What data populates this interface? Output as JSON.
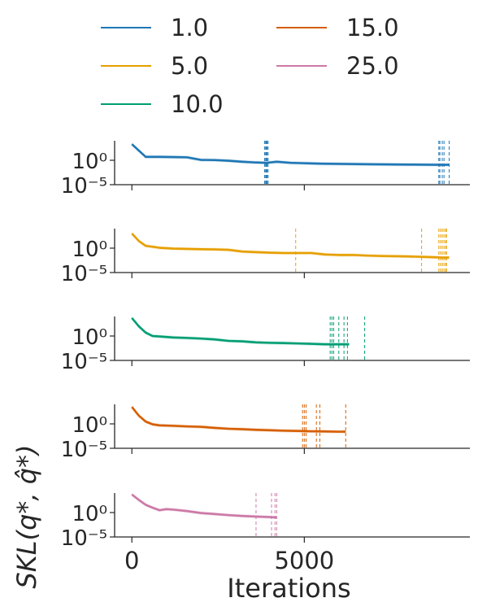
{
  "chart_data": {
    "type": "line",
    "xlabel": "Iterations",
    "ylabel": "SKL(q*, q̂*)",
    "xlim": [
      -500,
      9800
    ],
    "x_ticks": [
      0,
      5000
    ],
    "x_tick_labels": [
      "0",
      "5000"
    ],
    "yscale": "log",
    "ylim": [
      1e-05,
      10000
    ],
    "y_tick_labels": [
      "10⁰",
      "10⁻⁵"
    ],
    "y_tick_values": [
      1,
      1e-05
    ],
    "grid": false,
    "legend_placement": "top-center",
    "series": [
      {
        "name": "1.0",
        "color": "#1f77b4",
        "x": [
          0,
          400,
          800,
          1200,
          1600,
          2000,
          2400,
          2800,
          3200,
          3600,
          3900,
          4200,
          4600,
          5000,
          5500,
          6000,
          7000,
          8000,
          8900,
          9200
        ],
        "y": [
          2000,
          5,
          5,
          4.5,
          4,
          1.2,
          1.1,
          0.8,
          0.5,
          0.35,
          0.3,
          0.5,
          0.3,
          0.25,
          0.2,
          0.18,
          0.15,
          0.13,
          0.12,
          0.12
        ],
        "end_iterations": [
          3850,
          3880,
          3900,
          3920,
          3950,
          8900,
          8930,
          9000,
          9050,
          9200
        ]
      },
      {
        "name": "5.0",
        "color": "#e69f00",
        "x": [
          0,
          200,
          400,
          800,
          1200,
          1600,
          2000,
          2400,
          2800,
          3200,
          3600,
          4000,
          4400,
          4800,
          5200,
          5600,
          6000,
          6400,
          6800,
          7200,
          8000,
          8600,
          9000,
          9200
        ],
        "y": [
          1000,
          30,
          3,
          1.2,
          0.8,
          0.7,
          0.6,
          0.55,
          0.45,
          0.2,
          0.15,
          0.12,
          0.1,
          0.1,
          0.1,
          0.05,
          0.04,
          0.04,
          0.03,
          0.025,
          0.02,
          0.015,
          0.012,
          0.012
        ],
        "end_iterations": [
          4750,
          8400,
          8900,
          8950,
          9000,
          9050,
          9100,
          9120
        ]
      },
      {
        "name": "10.0",
        "color": "#009e73",
        "x": [
          0,
          200,
          400,
          600,
          800,
          1200,
          1600,
          2000,
          2400,
          2800,
          3200,
          3600,
          4000,
          4400,
          4800,
          5200,
          5600,
          6000,
          6300
        ],
        "y": [
          5000,
          100,
          5,
          1,
          0.8,
          0.5,
          0.4,
          0.3,
          0.2,
          0.1,
          0.08,
          0.05,
          0.04,
          0.035,
          0.03,
          0.025,
          0.02,
          0.02,
          0.02
        ],
        "end_iterations": [
          5750,
          5800,
          5850,
          6000,
          6150,
          6250,
          6750
        ]
      },
      {
        "name": "15.0",
        "color": "#d55e00",
        "x": [
          0,
          200,
          400,
          600,
          800,
          1200,
          1600,
          2000,
          2400,
          2800,
          3200,
          3600,
          4000,
          4400,
          4800,
          5200,
          5600,
          6000,
          6200
        ],
        "y": [
          3000,
          50,
          3,
          0.8,
          0.5,
          0.4,
          0.3,
          0.25,
          0.15,
          0.1,
          0.08,
          0.06,
          0.05,
          0.04,
          0.035,
          0.03,
          0.028,
          0.025,
          0.025
        ],
        "end_iterations": [
          4950,
          5000,
          5050,
          5350,
          5450,
          6200
        ]
      },
      {
        "name": "25.0",
        "color": "#cc79a7",
        "x": [
          0,
          200,
          400,
          600,
          800,
          1000,
          1200,
          1600,
          2000,
          2400,
          2800,
          3200,
          3600,
          4000,
          4200
        ],
        "y": [
          5000,
          400,
          40,
          10,
          3,
          5,
          4,
          2,
          0.8,
          0.5,
          0.3,
          0.2,
          0.15,
          0.12,
          0.1
        ],
        "end_iterations": [
          3600,
          4050,
          4150,
          4200
        ]
      }
    ]
  }
}
